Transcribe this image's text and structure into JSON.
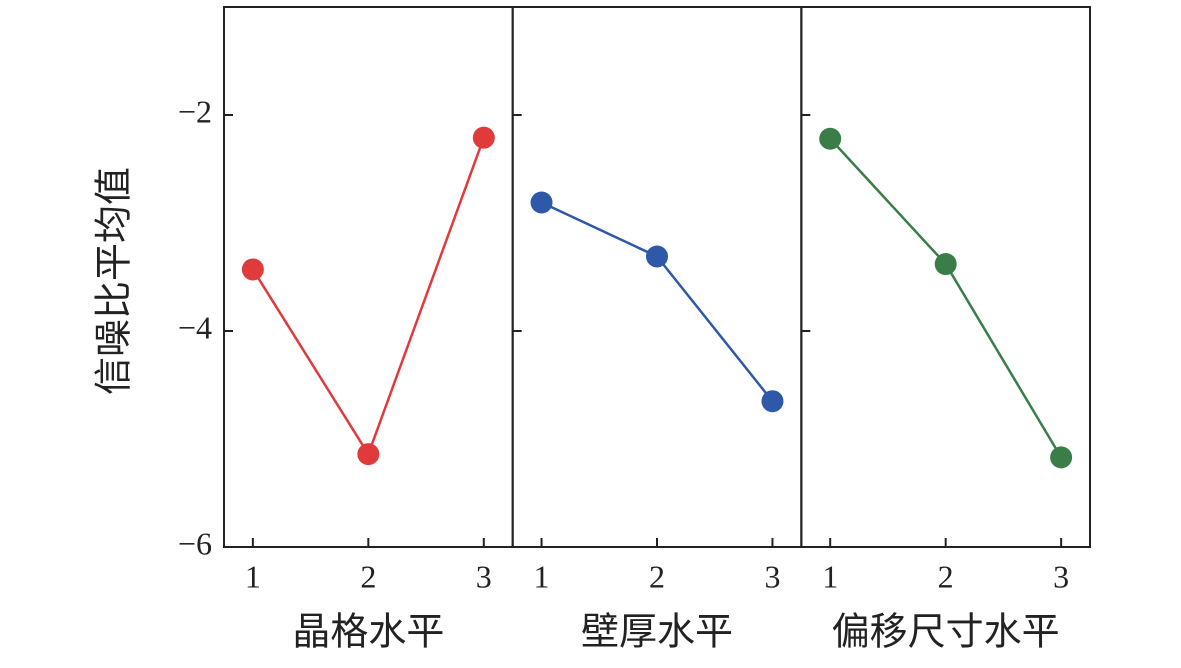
{
  "chart_data": [
    {
      "type": "line",
      "ylabel": "信噪比平均值",
      "xlabel": "晶格水平",
      "x": [
        1,
        2,
        3
      ],
      "values": [
        -3.43,
        -5.14,
        -2.21
      ],
      "color": "#e03a3a",
      "xlim": [
        0.75,
        3.25
      ],
      "xticks": [
        1,
        2,
        3
      ],
      "ylim": [
        -6,
        -1
      ],
      "yticks": [
        {
          "value": -6,
          "label": "−6"
        },
        {
          "value": -4,
          "label": "−4"
        },
        {
          "value": -2,
          "label": "−2"
        }
      ]
    },
    {
      "type": "line",
      "xlabel": "壁厚水平",
      "x": [
        1,
        2,
        3
      ],
      "values": [
        -2.81,
        -3.31,
        -4.65
      ],
      "color": "#2f58a8",
      "xlim": [
        0.75,
        3.25
      ],
      "xticks": [
        1,
        2,
        3
      ],
      "ylim": [
        -6,
        -1
      ]
    },
    {
      "type": "line",
      "xlabel": "偏移尺寸水平",
      "x": [
        1,
        2,
        3
      ],
      "values": [
        -2.22,
        -3.38,
        -5.17
      ],
      "color": "#3a7d48",
      "xlim": [
        0.75,
        3.25
      ],
      "xticks": [
        1,
        2,
        3
      ],
      "ylim": [
        -6,
        -1
      ]
    }
  ]
}
